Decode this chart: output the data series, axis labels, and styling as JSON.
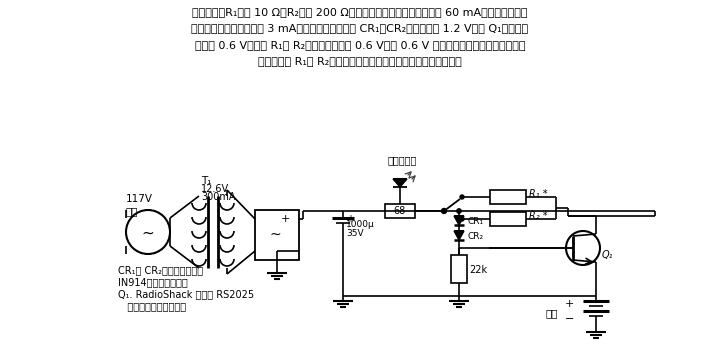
{
  "bg": "#ffffff",
  "lc": "#000000",
  "text_lines": [
    "本电路中，R₁选用 10 Ω，R₂选用 200 Ω。当开关向上合时，充电电流为 60 mA（恒流）；当开",
    "关向下合时，充电电流为 3 mA（恒流）。硅二极管 CR₁、CR₂的总压降为 1.2 V，而 Q₁的发射结",
    "压降为 0.6 V，所以 R₁或 R₂上的净压降就是 0.6 V。把 0.6 V 除以所要求的充电电流（以安坳",
    "计），便是 R₁或 R₂的阻値。发光二极管指示充电电路工作状态。"
  ],
  "note_lines": [
    "CR₁和 CR₂一般为硅二极管",
    "IN914管或其它代用管",
    "Q₁. RadioShack 公司的 RS2025",
    "   晶体管须装在散热片上"
  ],
  "src_v": "117V",
  "src_ac": "交流",
  "t1_label": "T₁",
  "t1_v": "12.6V",
  "t1_a": "300mA",
  "r68": "68",
  "cap1": "1000μ",
  "cap2": "35V",
  "r1_lbl": "R₁ *",
  "r2_lbl": "R₂ *",
  "cr1_lbl": "CR₁",
  "cr2_lbl": "CR₂",
  "q1_lbl": "Q₁",
  "bat_lbl": "电池",
  "r22k": "22k",
  "led_lbl": "发光二极管"
}
